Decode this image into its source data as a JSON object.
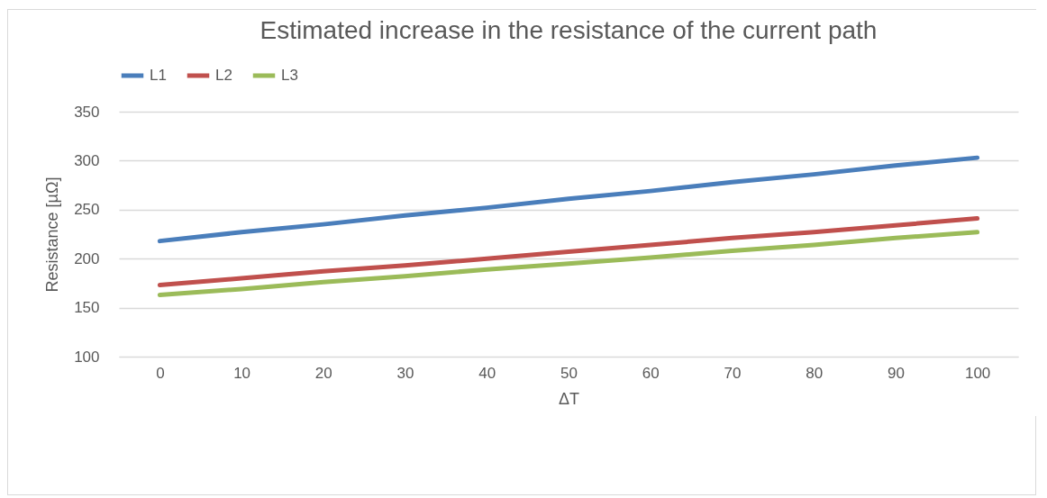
{
  "chart_data": {
    "type": "line",
    "title": "Estimated increase in the resistance of the current path",
    "xlabel": "ΔT",
    "ylabel": "Resistance [µΩ]",
    "categories": [
      "0",
      "10",
      "20",
      "30",
      "40",
      "50",
      "60",
      "70",
      "80",
      "90",
      "100"
    ],
    "series": [
      {
        "name": "L1",
        "color": "#4a7ebb",
        "values": [
          218,
          227,
          235,
          244,
          252,
          261,
          269,
          278,
          286,
          295,
          303
        ]
      },
      {
        "name": "L2",
        "color": "#c0504d",
        "values": [
          173,
          180,
          187,
          193,
          200,
          207,
          214,
          221,
          227,
          234,
          241
        ]
      },
      {
        "name": "L3",
        "color": "#9bbb59",
        "values": [
          163,
          169,
          176,
          182,
          189,
          195,
          201,
          208,
          214,
          221,
          227
        ]
      }
    ],
    "ylim": [
      100,
      350
    ],
    "yticks": [
      100,
      150,
      200,
      250,
      300,
      350
    ],
    "grid": "y",
    "legend": "top",
    "marker": "none",
    "line_style": "solid"
  }
}
